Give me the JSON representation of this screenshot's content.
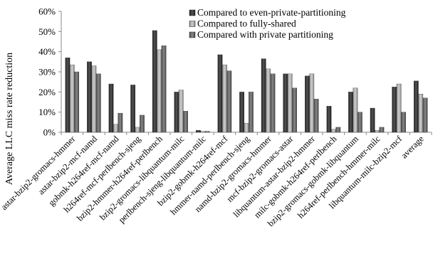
{
  "chart_data": {
    "type": "bar",
    "ylabel": "Average LLC miss rate reduction",
    "ylim": [
      0,
      60
    ],
    "yticks": [
      "0%",
      "10%",
      "20%",
      "30%",
      "40%",
      "50%",
      "60%"
    ],
    "grid": false,
    "legend_position": "top-right",
    "categories": [
      "astar-bzip2-gromacs-hmmer",
      "astar-bzip2-mcf-namd",
      "gobmk-h264ref-mcf-namd",
      "h264ref-mcf-perlbench-sjeng",
      "bzip2-hmmer-h264ref-perlbench",
      "bzip2-gromacs-libquantum-milc",
      "perlbench-sjeng-libquantum-milc",
      "bzip2-gobmk-h264ref-mcf",
      "hmmer-namd-perlbench-sjeng",
      "namd-bzip2-gromacs-hmmer",
      "mcf-bzip2-gromacs-astar",
      "libquantum-astar-bzip2-hmmer",
      "milc-gobmk-h264ref-perlbench",
      "bzip2-gromacs-gobmk-libquantum",
      "h264ref-perlbench-hmmer-milc",
      "libquantum-milc-bzip2-mcf",
      "average"
    ],
    "series": [
      {
        "name": "Compared to even-private-partitioning",
        "color": "#333333",
        "values": [
          37,
          35,
          24,
          23.5,
          50.5,
          20,
          1,
          38.5,
          20,
          36.5,
          29,
          28,
          13,
          20,
          12,
          22.5,
          25.5
        ]
      },
      {
        "name": "Compared to fully-shared",
        "color": "#a6a6a6",
        "values": [
          33.5,
          33,
          4,
          2.5,
          41,
          21,
          0.5,
          33.5,
          4.5,
          31.5,
          29,
          29,
          1.5,
          22,
          1,
          24,
          19
        ]
      },
      {
        "name": "Compared with private partitioning",
        "color": "#666666",
        "values": [
          30,
          29,
          9.5,
          8.5,
          43,
          10.5,
          0.5,
          30.5,
          20,
          29,
          22,
          16.5,
          2.5,
          10,
          2.5,
          10,
          17
        ]
      }
    ]
  }
}
